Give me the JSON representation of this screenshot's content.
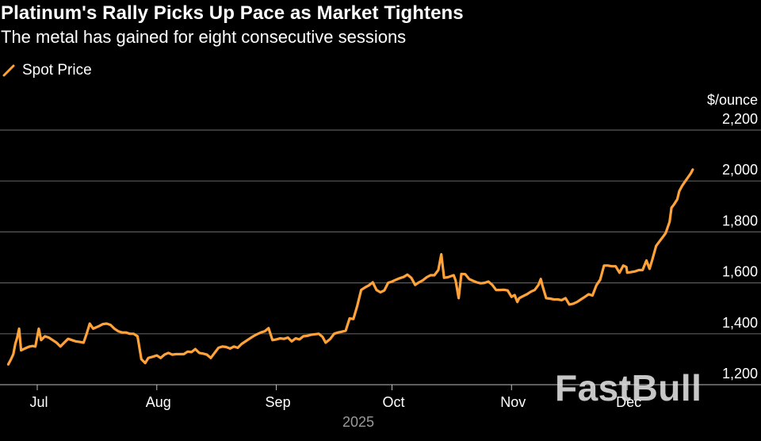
{
  "title": "Platinum's Rally Picks Up Pace as Market Tightens",
  "subtitle": "The metal has gained for eight consecutive sessions",
  "legend": {
    "label": "Spot Price",
    "color": "#ffa23a",
    "icon": "line-segment-icon"
  },
  "watermark": "FastBull",
  "chart_data": {
    "type": "line",
    "title": "Platinum's Rally Picks Up Pace as Market Tightens",
    "subtitle": "The metal has gained for eight consecutive sessions",
    "ylabel": "$/ounce",
    "xlabel": "2025",
    "ylim": [
      1200,
      2200
    ],
    "yticks": [
      1200,
      1400,
      1600,
      1800,
      2000,
      2200
    ],
    "ytick_labels": [
      "1,200",
      "1,400",
      "1,600",
      "1,800",
      "2,000",
      "2,200"
    ],
    "xticks": [
      {
        "label": "Jul",
        "day": 0
      },
      {
        "label": "Aug",
        "day": 31
      },
      {
        "label": "Sep",
        "day": 62
      },
      {
        "label": "Oct",
        "day": 92
      },
      {
        "label": "Nov",
        "day": 123
      },
      {
        "label": "Dec",
        "day": 153
      }
    ],
    "x_unit": "days since Jul 1, 2025",
    "grid": true,
    "series": [
      {
        "name": "Spot Price",
        "color": "#ffa23a",
        "points": [
          [
            -7.5,
            1280
          ],
          [
            -6.8,
            1300
          ],
          [
            -6.2,
            1320
          ],
          [
            -5.7,
            1360
          ],
          [
            -5.2,
            1385
          ],
          [
            -4.7,
            1420
          ],
          [
            -4.2,
            1335
          ],
          [
            -3.5,
            1340
          ],
          [
            -2.8,
            1345
          ],
          [
            -2,
            1350
          ],
          [
            -1.2,
            1352
          ],
          [
            -0.5,
            1350
          ],
          [
            0.4,
            1420
          ],
          [
            1,
            1375
          ],
          [
            2,
            1390
          ],
          [
            3,
            1385
          ],
          [
            4,
            1375
          ],
          [
            5,
            1365
          ],
          [
            6,
            1350
          ],
          [
            7,
            1365
          ],
          [
            8,
            1380
          ],
          [
            9,
            1375
          ],
          [
            10,
            1370
          ],
          [
            11,
            1368
          ],
          [
            12,
            1365
          ],
          [
            12.8,
            1400
          ],
          [
            13.6,
            1440
          ],
          [
            14.5,
            1420
          ],
          [
            16,
            1430
          ],
          [
            17,
            1438
          ],
          [
            18,
            1440
          ],
          [
            19,
            1435
          ],
          [
            20,
            1420
          ],
          [
            21,
            1410
          ],
          [
            22,
            1405
          ],
          [
            23,
            1405
          ],
          [
            24,
            1400
          ],
          [
            25,
            1400
          ],
          [
            26,
            1390
          ],
          [
            27,
            1300
          ],
          [
            28,
            1285
          ],
          [
            28.8,
            1305
          ],
          [
            30,
            1310
          ],
          [
            31,
            1315
          ],
          [
            32,
            1305
          ],
          [
            33,
            1318
          ],
          [
            34,
            1325
          ],
          [
            35,
            1318
          ],
          [
            36,
            1320
          ],
          [
            37,
            1320
          ],
          [
            38,
            1320
          ],
          [
            39,
            1330
          ],
          [
            40,
            1328
          ],
          [
            41,
            1340
          ],
          [
            42,
            1325
          ],
          [
            43,
            1322
          ],
          [
            44,
            1318
          ],
          [
            45,
            1305
          ],
          [
            46,
            1325
          ],
          [
            47,
            1345
          ],
          [
            48,
            1350
          ],
          [
            49,
            1348
          ],
          [
            50,
            1342
          ],
          [
            51,
            1350
          ],
          [
            52,
            1345
          ],
          [
            53,
            1360
          ],
          [
            54,
            1370
          ],
          [
            55,
            1380
          ],
          [
            56,
            1390
          ],
          [
            57,
            1398
          ],
          [
            58,
            1405
          ],
          [
            59,
            1410
          ],
          [
            60,
            1422
          ],
          [
            61,
            1375
          ],
          [
            62,
            1378
          ],
          [
            63,
            1382
          ],
          [
            64,
            1380
          ],
          [
            65,
            1385
          ],
          [
            66,
            1370
          ],
          [
            67,
            1382
          ],
          [
            68,
            1378
          ],
          [
            69,
            1390
          ],
          [
            70,
            1392
          ],
          [
            71,
            1396
          ],
          [
            72,
            1398
          ],
          [
            73,
            1400
          ],
          [
            74,
            1388
          ],
          [
            74.8,
            1365
          ],
          [
            76,
            1380
          ],
          [
            77,
            1400
          ],
          [
            78,
            1405
          ],
          [
            79,
            1408
          ],
          [
            80,
            1412
          ],
          [
            81,
            1460
          ],
          [
            82,
            1458
          ],
          [
            83,
            1510
          ],
          [
            84,
            1572
          ],
          [
            85,
            1582
          ],
          [
            86,
            1590
          ],
          [
            87,
            1602
          ],
          [
            88,
            1572
          ],
          [
            89,
            1563
          ],
          [
            90,
            1570
          ],
          [
            91,
            1600
          ],
          [
            92,
            1605
          ],
          [
            93,
            1612
          ],
          [
            94,
            1618
          ],
          [
            95,
            1623
          ],
          [
            96,
            1632
          ],
          [
            97,
            1620
          ],
          [
            98,
            1592
          ],
          [
            99,
            1602
          ],
          [
            100,
            1610
          ],
          [
            101,
            1622
          ],
          [
            102,
            1630
          ],
          [
            103,
            1630
          ],
          [
            104,
            1650
          ],
          [
            104.8,
            1712
          ],
          [
            105.5,
            1620
          ],
          [
            106.5,
            1622
          ],
          [
            108,
            1630
          ],
          [
            108.5,
            1610
          ],
          [
            109.3,
            1540
          ],
          [
            110,
            1635
          ],
          [
            111,
            1634
          ],
          [
            112,
            1615
          ],
          [
            113,
            1608
          ],
          [
            114,
            1602
          ],
          [
            115,
            1598
          ],
          [
            116,
            1600
          ],
          [
            117,
            1605
          ],
          [
            118,
            1592
          ],
          [
            119,
            1572
          ],
          [
            120,
            1572
          ],
          [
            121,
            1573
          ],
          [
            122,
            1570
          ],
          [
            123,
            1545
          ],
          [
            123.8,
            1552
          ],
          [
            124.5,
            1525
          ],
          [
            125,
            1540
          ],
          [
            126,
            1548
          ],
          [
            127,
            1555
          ],
          [
            128,
            1565
          ],
          [
            129,
            1572
          ],
          [
            130,
            1592
          ],
          [
            130.6,
            1615
          ],
          [
            131,
            1590
          ],
          [
            132,
            1540
          ],
          [
            133,
            1538
          ],
          [
            134,
            1535
          ],
          [
            135,
            1535
          ],
          [
            136,
            1532
          ],
          [
            137,
            1540
          ],
          [
            138,
            1515
          ],
          [
            139,
            1518
          ],
          [
            140,
            1525
          ],
          [
            141,
            1535
          ],
          [
            142,
            1545
          ],
          [
            143,
            1555
          ],
          [
            144,
            1550
          ],
          [
            145,
            1590
          ],
          [
            146,
            1612
          ],
          [
            147,
            1668
          ],
          [
            148,
            1668
          ],
          [
            149,
            1665
          ],
          [
            150,
            1665
          ],
          [
            151,
            1640
          ],
          [
            152,
            1668
          ],
          [
            152.8,
            1662
          ],
          [
            153,
            1640
          ],
          [
            154,
            1642
          ],
          [
            155,
            1645
          ],
          [
            156,
            1650
          ],
          [
            157,
            1650
          ],
          [
            158,
            1688
          ],
          [
            158.8,
            1655
          ],
          [
            159.5,
            1690
          ],
          [
            160.5,
            1745
          ],
          [
            161.5,
            1765
          ],
          [
            162.5,
            1785
          ],
          [
            163,
            1796
          ],
          [
            164,
            1840
          ],
          [
            164.5,
            1895
          ],
          [
            165,
            1905
          ],
          [
            166,
            1928
          ],
          [
            166.5,
            1960
          ],
          [
            167.2,
            1980
          ],
          [
            168,
            1998
          ],
          [
            168.8,
            2015
          ],
          [
            169.5,
            2030
          ],
          [
            170,
            2045
          ]
        ]
      }
    ]
  }
}
